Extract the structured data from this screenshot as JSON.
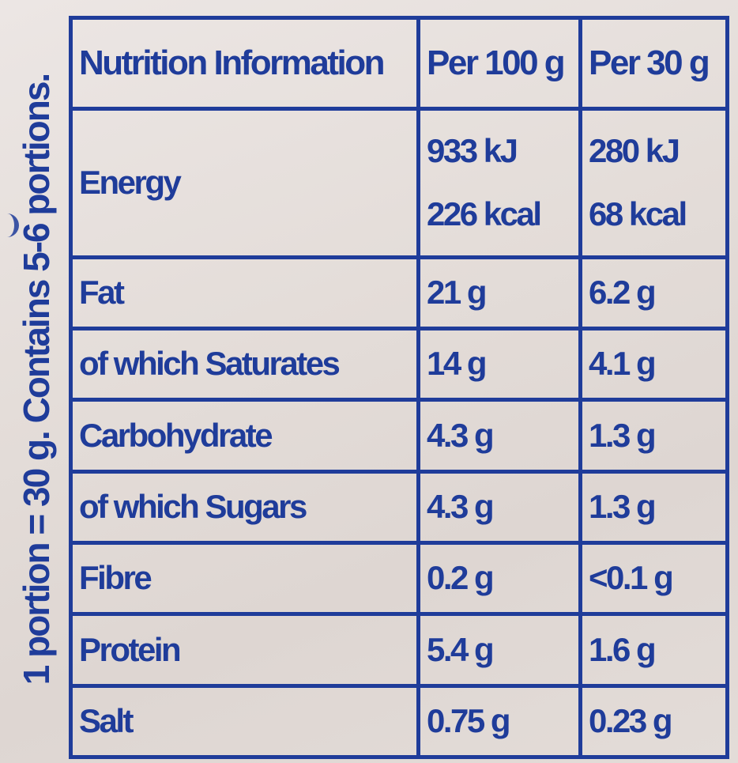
{
  "side_note": "1 portion = 30 g. Contains 5-6 portions.",
  "table": {
    "header": {
      "label": "Nutrition Information",
      "col1": "Per 100 g",
      "col2": "Per 30 g"
    },
    "energy": {
      "label": "Energy",
      "per100_kj": "933 kJ",
      "per100_kcal": "226 kcal",
      "per30_kj": "280 kJ",
      "per30_kcal": "68 kcal"
    },
    "rows": [
      {
        "label": "Fat",
        "per100": "21 g",
        "per30": "6.2 g"
      },
      {
        "label": "of which Saturates",
        "per100": "14 g",
        "per30": "4.1 g"
      },
      {
        "label": "Carbohydrate",
        "per100": "4.3 g",
        "per30": "1.3 g"
      },
      {
        "label": "of which Sugars",
        "per100": "4.3 g",
        "per30": "1.3 g"
      },
      {
        "label": "Fibre",
        "per100": "0.2 g",
        "per30": "<0.1 g"
      },
      {
        "label": "Protein",
        "per100": "5.4 g",
        "per30": "1.6 g"
      },
      {
        "label": "Salt",
        "per100": "0.75 g",
        "per30": "0.23 g"
      }
    ]
  },
  "colors": {
    "ink": "#1f3c9a",
    "background": "#e6dfdb"
  }
}
